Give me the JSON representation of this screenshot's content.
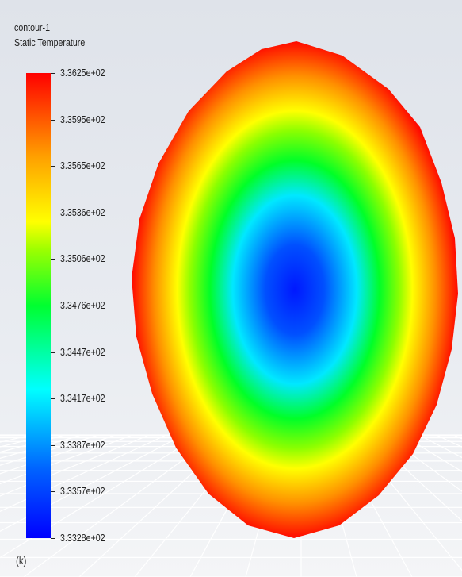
{
  "legend": {
    "title": "contour-1",
    "variable": "Static Temperature",
    "unit": "(k)",
    "ticks": [
      "3.3625e+02",
      "3.3595e+02",
      "3.3565e+02",
      "3.3536e+02",
      "3.3506e+02",
      "3.3476e+02",
      "3.3447e+02",
      "3.3417e+02",
      "3.3387e+02",
      "3.3357e+02",
      "3.3328e+02"
    ],
    "min": 333.28,
    "max": 336.25
  },
  "colormap": {
    "low": "#0000ff",
    "low_mid": "#00ffff",
    "mid": "#00ff30",
    "high_mid": "#ffff00",
    "high": "#ff0000"
  },
  "scene": {
    "background": "#e6e9ee",
    "floor_grid": "visible",
    "contour_shape": "ellipse"
  }
}
